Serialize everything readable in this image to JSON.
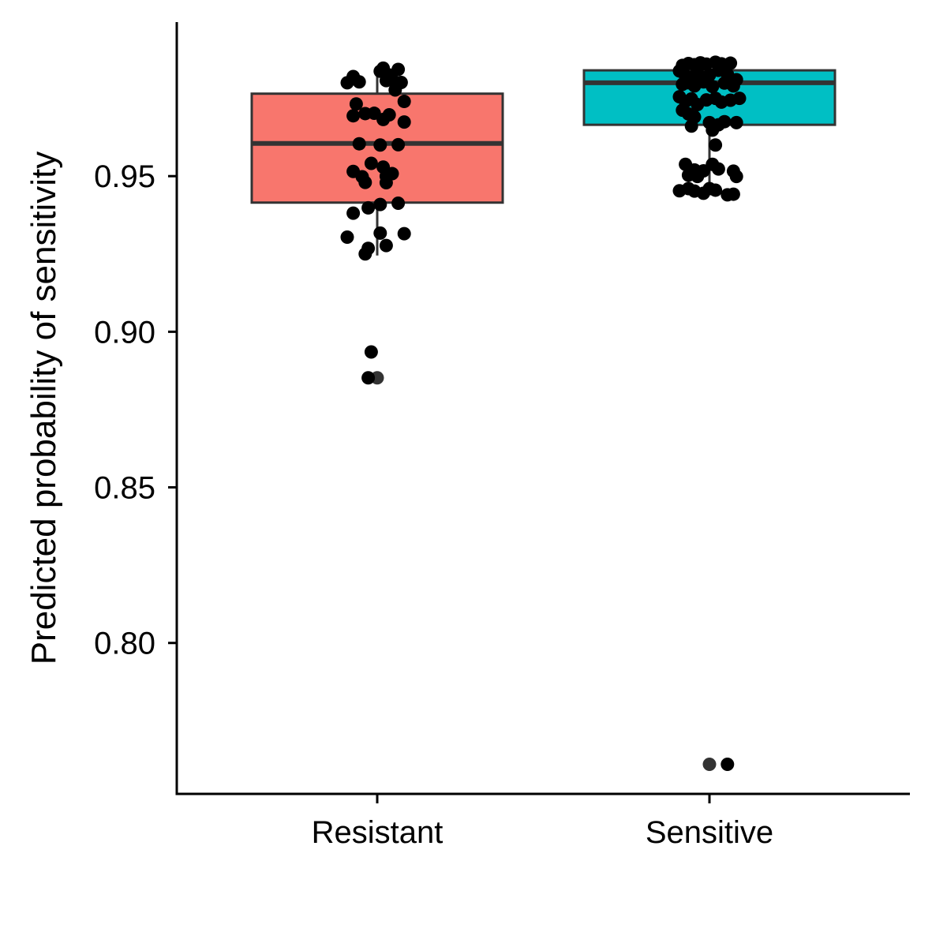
{
  "chart_data": {
    "type": "boxplot",
    "title": "",
    "xlabel": "",
    "ylabel": "Predicted probability of sensitivity",
    "ylim": [
      0.7515,
      0.9995
    ],
    "y_ticks": [
      0.8,
      0.85,
      0.9,
      0.95
    ],
    "y_tick_labels": [
      "0.80",
      "0.85",
      "0.90",
      "0.95"
    ],
    "grid": false,
    "legend": "none",
    "colors": {
      "box_line": "#333333",
      "point": "#000000",
      "outlier": "#333333",
      "axis": "#000000"
    },
    "groups": [
      {
        "category": "Resistant",
        "fill": "#F8766D",
        "box": {
          "min": 0.9245,
          "q1": 0.9415,
          "median": 0.9605,
          "q3": 0.9765,
          "max": 0.9852
        },
        "outliers": [
          0.8852
        ],
        "points": [
          [
            -0.1,
            0.98
          ],
          [
            -0.08,
            0.982
          ],
          [
            -0.06,
            0.9803
          ],
          [
            -0.07,
            0.9732
          ],
          [
            -0.08,
            0.9694
          ],
          [
            -0.04,
            0.9701
          ],
          [
            -0.01,
            0.9702
          ],
          [
            0.02,
            0.9682
          ],
          [
            0.04,
            0.9697
          ],
          [
            0.09,
            0.9674
          ],
          [
            0.01,
            0.9837
          ],
          [
            0.02,
            0.9847
          ],
          [
            0.03,
            0.9807
          ],
          [
            0.04,
            0.9825
          ],
          [
            0.05,
            0.981
          ],
          [
            0.07,
            0.9843
          ],
          [
            0.08,
            0.9801
          ],
          [
            0.06,
            0.9777
          ],
          [
            0.09,
            0.974
          ],
          [
            -0.06,
            0.9604
          ],
          [
            0.01,
            0.96
          ],
          [
            0.07,
            0.9601
          ],
          [
            -0.08,
            0.9515
          ],
          [
            -0.05,
            0.9498
          ],
          [
            -0.04,
            0.948
          ],
          [
            -0.02,
            0.9541
          ],
          [
            0.02,
            0.9529
          ],
          [
            0.03,
            0.9479
          ],
          [
            0.05,
            0.9508
          ],
          [
            0.03,
            0.95
          ],
          [
            0.07,
            0.9413
          ],
          [
            0.01,
            0.9409
          ],
          [
            -0.03,
            0.9398
          ],
          [
            -0.08,
            0.9381
          ],
          [
            -0.1,
            0.9304
          ],
          [
            0.01,
            0.9317
          ],
          [
            0.09,
            0.9315
          ],
          [
            0.03,
            0.9277
          ],
          [
            -0.03,
            0.9268
          ],
          [
            -0.04,
            0.925
          ],
          [
            -0.02,
            0.8935
          ],
          [
            -0.03,
            0.8852
          ]
        ]
      },
      {
        "category": "Sensitive",
        "fill": "#00BFC4",
        "box": {
          "min": 0.944,
          "q1": 0.9665,
          "median": 0.98,
          "q3": 0.984,
          "max": 0.987
        },
        "outliers": [
          0.761
        ],
        "points": [
          [
            -0.09,
            0.9856
          ],
          [
            -0.07,
            0.9862
          ],
          [
            -0.05,
            0.9858
          ],
          [
            -0.03,
            0.9864
          ],
          [
            -0.01,
            0.986
          ],
          [
            0.02,
            0.9866
          ],
          [
            0.04,
            0.9861
          ],
          [
            0.07,
            0.9863
          ],
          [
            -0.1,
            0.9838
          ],
          [
            -0.08,
            0.9822
          ],
          [
            -0.06,
            0.9818
          ],
          [
            -0.04,
            0.9832
          ],
          [
            0.0,
            0.9825
          ],
          [
            0.03,
            0.984
          ],
          [
            0.06,
            0.9827
          ],
          [
            0.09,
            0.981
          ],
          [
            -0.09,
            0.9795
          ],
          [
            -0.07,
            0.98
          ],
          [
            -0.05,
            0.979
          ],
          [
            -0.02,
            0.9803
          ],
          [
            0.01,
            0.9788
          ],
          [
            0.05,
            0.9799
          ],
          [
            0.08,
            0.979
          ],
          [
            -0.1,
            0.9755
          ],
          [
            -0.08,
            0.974
          ],
          [
            -0.06,
            0.9748
          ],
          [
            -0.04,
            0.973
          ],
          [
            -0.01,
            0.9745
          ],
          [
            0.02,
            0.975
          ],
          [
            0.04,
            0.9738
          ],
          [
            0.07,
            0.9744
          ],
          [
            0.1,
            0.975
          ],
          [
            -0.09,
            0.9712
          ],
          [
            -0.07,
            0.97
          ],
          [
            -0.05,
            0.969
          ],
          [
            0.0,
            0.9672
          ],
          [
            0.03,
            0.9665
          ],
          [
            0.05,
            0.9675
          ],
          [
            0.09,
            0.9672
          ],
          [
            -0.06,
            0.9661
          ],
          [
            0.01,
            0.9648
          ],
          [
            0.02,
            0.96
          ],
          [
            -0.08,
            0.9538
          ],
          [
            -0.05,
            0.952
          ],
          [
            -0.07,
            0.9503
          ],
          [
            -0.04,
            0.9499
          ],
          [
            -0.02,
            0.9517
          ],
          [
            0.01,
            0.9538
          ],
          [
            0.03,
            0.9523
          ],
          [
            0.08,
            0.9516
          ],
          [
            0.09,
            0.9499
          ],
          [
            -0.1,
            0.9453
          ],
          [
            -0.07,
            0.946
          ],
          [
            -0.05,
            0.9452
          ],
          [
            -0.02,
            0.9445
          ],
          [
            0.0,
            0.946
          ],
          [
            0.02,
            0.9455
          ],
          [
            0.06,
            0.944
          ],
          [
            0.08,
            0.9442
          ],
          [
            0.06,
            0.761
          ]
        ]
      }
    ]
  }
}
